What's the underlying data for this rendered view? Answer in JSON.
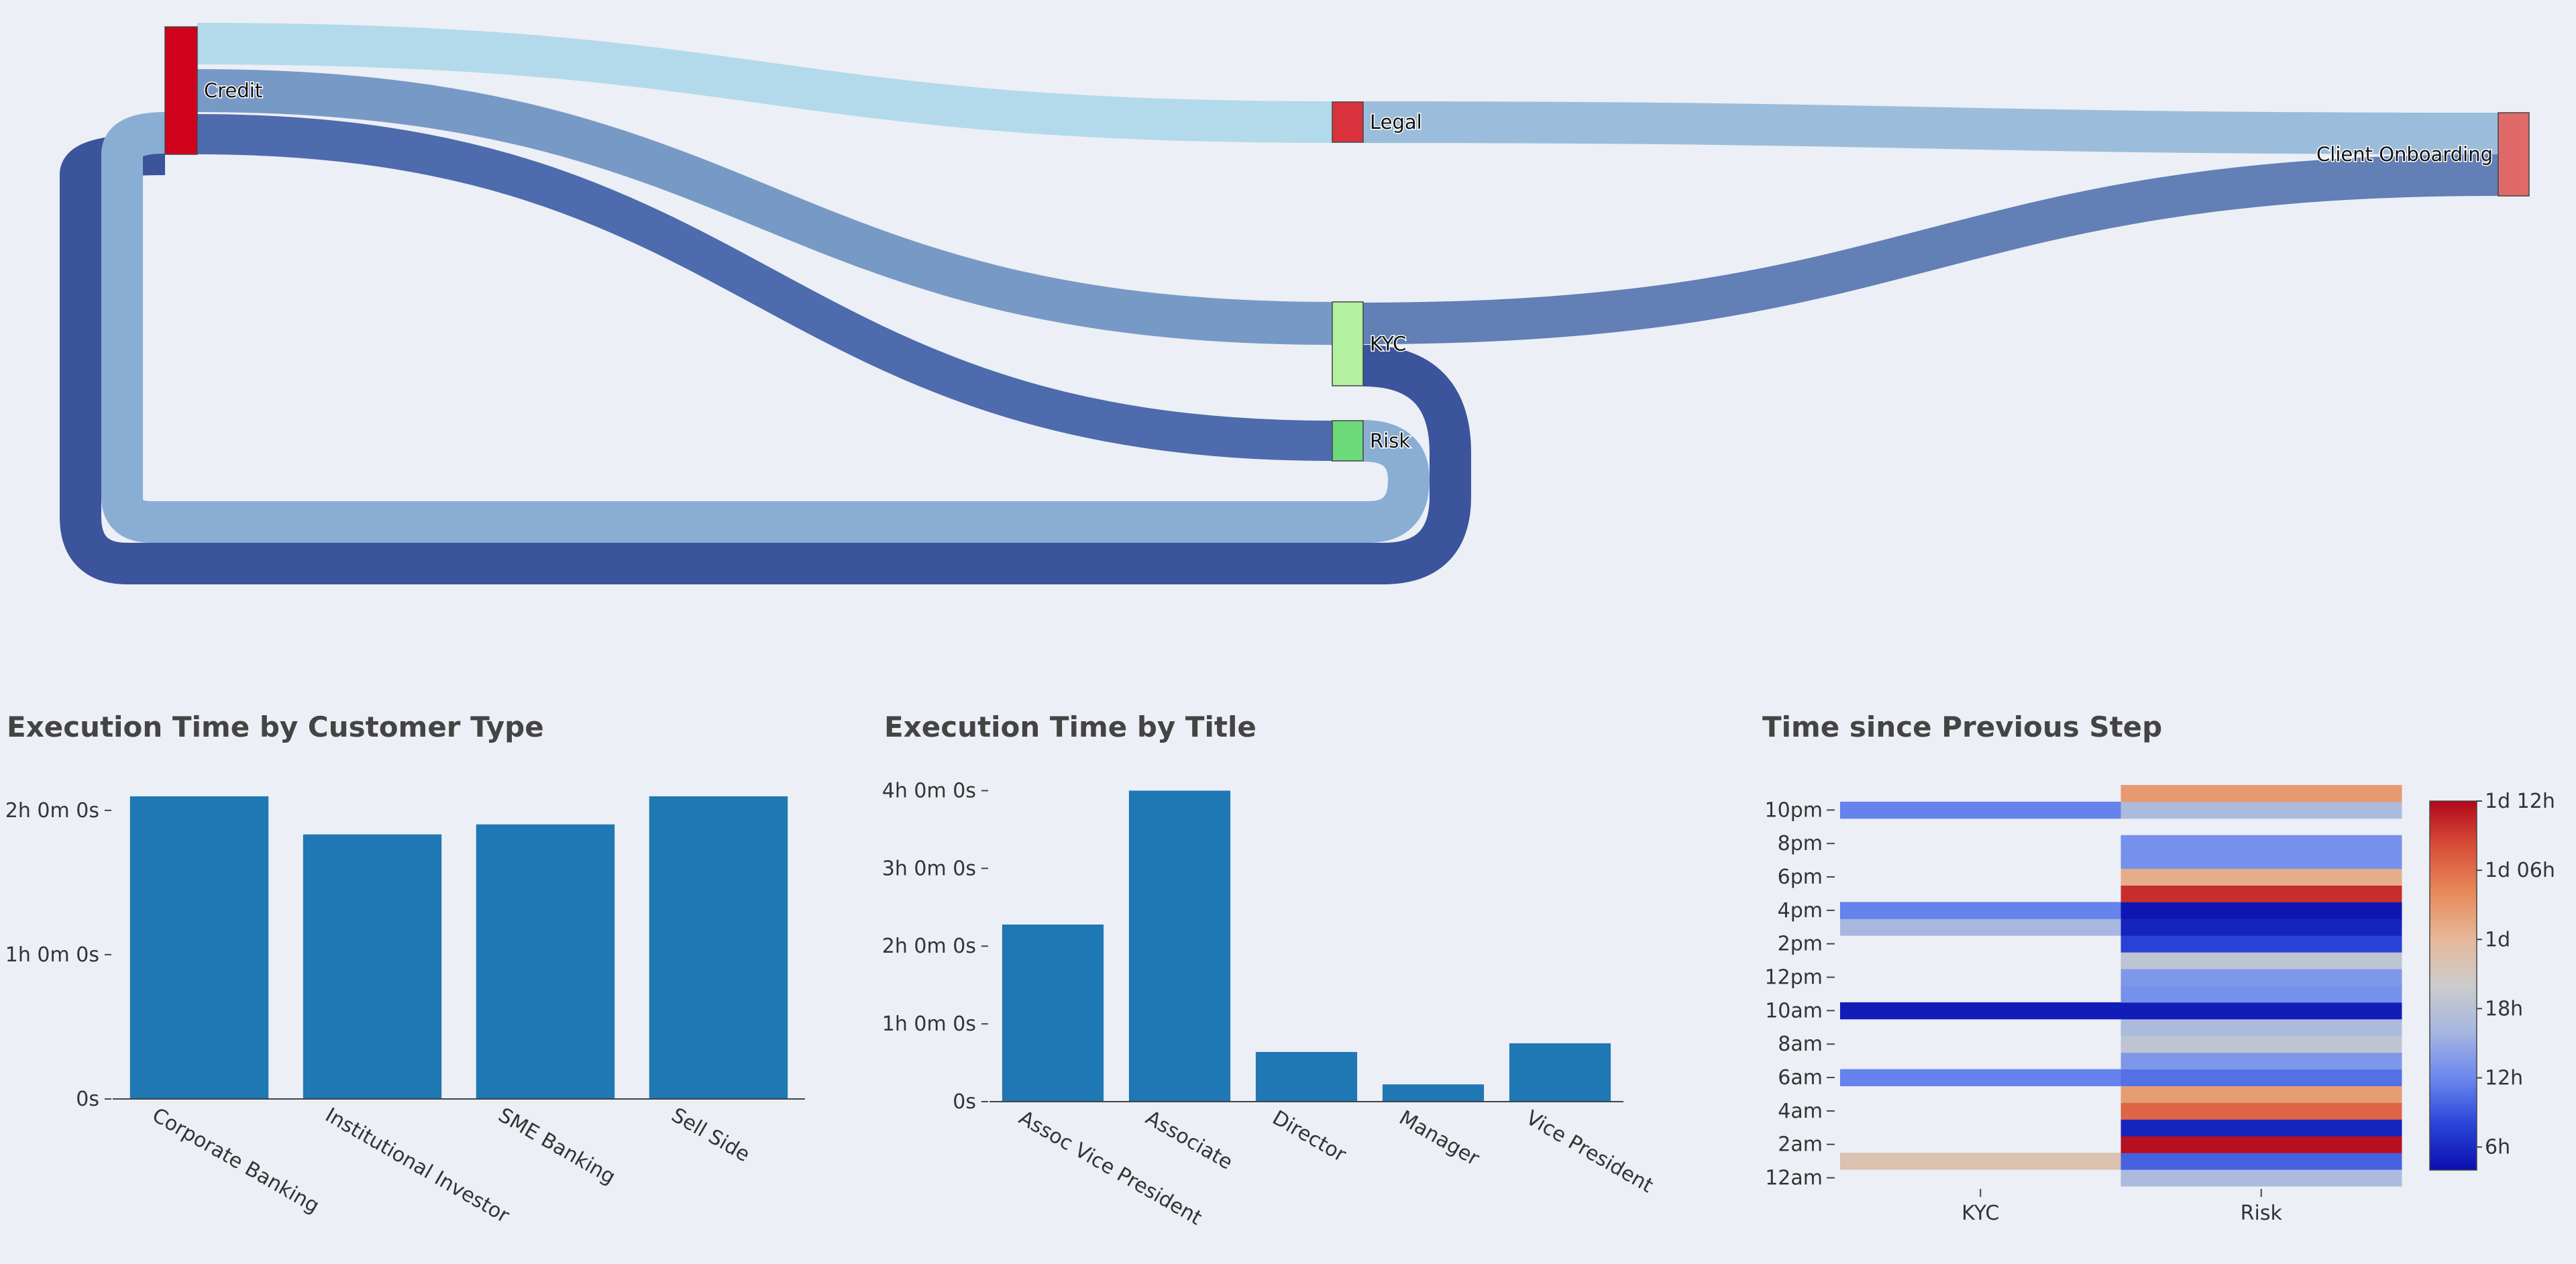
{
  "chart_data": [
    {
      "type": "sankey",
      "nodes": [
        {
          "id": "credit",
          "label": "Credit",
          "color": "#D0021B"
        },
        {
          "id": "legal",
          "label": "Legal",
          "color": "#D9323C"
        },
        {
          "id": "kyc",
          "label": "KYC",
          "color": "#B3F0A0"
        },
        {
          "id": "risk",
          "label": "Risk",
          "color": "#6DDA7A"
        },
        {
          "id": "onboarding",
          "label": "Client Onboarding",
          "color": "#E06A6A"
        }
      ],
      "links": [
        {
          "source": "credit",
          "target": "legal",
          "value": 2,
          "color": "#B2DAEB"
        },
        {
          "source": "credit",
          "target": "kyc",
          "value": 2,
          "color": "#7799C5"
        },
        {
          "source": "credit",
          "target": "risk",
          "value": 2,
          "color": "#4D6BAD"
        },
        {
          "source": "legal",
          "target": "onboarding",
          "value": 2,
          "color": "#9BBDDB"
        },
        {
          "source": "kyc",
          "target": "onboarding",
          "value": 2,
          "color": "#627FB6"
        },
        {
          "source": "kyc",
          "target": "credit",
          "value": 2,
          "color": "#3B549C"
        },
        {
          "source": "risk",
          "target": "credit",
          "value": 2,
          "color": "#8AAED3"
        }
      ]
    },
    {
      "type": "bar",
      "title": "Execution Time by Customer Type",
      "categories": [
        "Corporate Banking",
        "Institutional Investor",
        "SME Banking",
        "Sell Side"
      ],
      "values": [
        7550,
        6600,
        6850,
        7550
      ],
      "unit": "seconds",
      "ylim": [
        0,
        7800
      ],
      "yticks": [
        {
          "value": 0,
          "label": "0s"
        },
        {
          "value": 3600,
          "label": "1h 0m 0s"
        },
        {
          "value": 7200,
          "label": "2h 0m 0s"
        }
      ],
      "color": "#1F77B4"
    },
    {
      "type": "bar",
      "title": "Execution Time by Title",
      "categories": [
        "Assoc Vice President",
        "Associate",
        "Director",
        "Manager",
        "Vice President"
      ],
      "values": [
        8200,
        14400,
        2300,
        800,
        2700
      ],
      "unit": "seconds",
      "ylim": [
        0,
        14600
      ],
      "yticks": [
        {
          "value": 0,
          "label": "0s"
        },
        {
          "value": 3600,
          "label": "1h 0m 0s"
        },
        {
          "value": 7200,
          "label": "2h 0m 0s"
        },
        {
          "value": 10800,
          "label": "3h 0m 0s"
        },
        {
          "value": 14400,
          "label": "4h 0m 0s"
        }
      ],
      "color": "#1F77B4"
    },
    {
      "type": "heatmap",
      "title": "Time since Previous Step",
      "x": [
        "KYC",
        "Risk"
      ],
      "y_hours_range": [
        -0.5,
        23.5
      ],
      "yticks": [
        {
          "value": 0,
          "label": "12am"
        },
        {
          "value": 2,
          "label": "2am"
        },
        {
          "value": 4,
          "label": "4am"
        },
        {
          "value": 6,
          "label": "6am"
        },
        {
          "value": 8,
          "label": "8am"
        },
        {
          "value": 10,
          "label": "10am"
        },
        {
          "value": 12,
          "label": "12pm"
        },
        {
          "value": 14,
          "label": "2pm"
        },
        {
          "value": 16,
          "label": "4pm"
        },
        {
          "value": 18,
          "label": "6pm"
        },
        {
          "value": 20,
          "label": "8pm"
        },
        {
          "value": 22,
          "label": "10pm"
        }
      ],
      "colorscale": [
        "#0A0FAE",
        "#2A45D8",
        "#6B88EE",
        "#A6B6E0",
        "#CCCCCC",
        "#E6B89A",
        "#E78B5A",
        "#D9503A",
        "#B2071B"
      ],
      "zlim": [
        14400,
        129600
      ],
      "colorbar_ticks": [
        {
          "value": 21600,
          "label": "6h"
        },
        {
          "value": 43200,
          "label": "12h"
        },
        {
          "value": 64800,
          "label": "18h"
        },
        {
          "value": 86400,
          "label": "1d"
        },
        {
          "value": 108000,
          "label": "1d 06h"
        },
        {
          "value": 129600,
          "label": "1d 12h"
        }
      ],
      "cells": [
        {
          "x": "KYC",
          "hour": 1,
          "value": 80000
        },
        {
          "x": "KYC",
          "hour": 6,
          "value": 42000
        },
        {
          "x": "KYC",
          "hour": 10,
          "value": 18000
        },
        {
          "x": "KYC",
          "hour": 15,
          "value": 58000
        },
        {
          "x": "KYC",
          "hour": 16,
          "value": 42000
        },
        {
          "x": "KYC",
          "hour": 22,
          "value": 42000
        },
        {
          "x": "Risk",
          "hour": 0,
          "value": 60000
        },
        {
          "x": "Risk",
          "hour": 1,
          "value": 35000
        },
        {
          "x": "Risk",
          "hour": 2,
          "value": 128000
        },
        {
          "x": "Risk",
          "hour": 3,
          "value": 20000
        },
        {
          "x": "Risk",
          "hour": 4,
          "value": 110000
        },
        {
          "x": "Risk",
          "hour": 5,
          "value": 95000
        },
        {
          "x": "Risk",
          "hour": 6,
          "value": 38000
        },
        {
          "x": "Risk",
          "hour": 7,
          "value": 48000
        },
        {
          "x": "Risk",
          "hour": 8,
          "value": 67000
        },
        {
          "x": "Risk",
          "hour": 9,
          "value": 60000
        },
        {
          "x": "Risk",
          "hour": 10,
          "value": 18000
        },
        {
          "x": "Risk",
          "hour": 11,
          "value": 46000
        },
        {
          "x": "Risk",
          "hour": 12,
          "value": 48000
        },
        {
          "x": "Risk",
          "hour": 13,
          "value": 67000
        },
        {
          "x": "Risk",
          "hour": 14,
          "value": 28000
        },
        {
          "x": "Risk",
          "hour": 15,
          "value": 20000
        },
        {
          "x": "Risk",
          "hour": 16,
          "value": 16000
        },
        {
          "x": "Risk",
          "hour": 17,
          "value": 122000
        },
        {
          "x": "Risk",
          "hour": 18,
          "value": 90000
        },
        {
          "x": "Risk",
          "hour": 19,
          "value": 46000
        },
        {
          "x": "Risk",
          "hour": 20,
          "value": 46000
        },
        {
          "x": "Risk",
          "hour": 22,
          "value": 60000
        },
        {
          "x": "Risk",
          "hour": 23,
          "value": 96000
        }
      ]
    }
  ]
}
